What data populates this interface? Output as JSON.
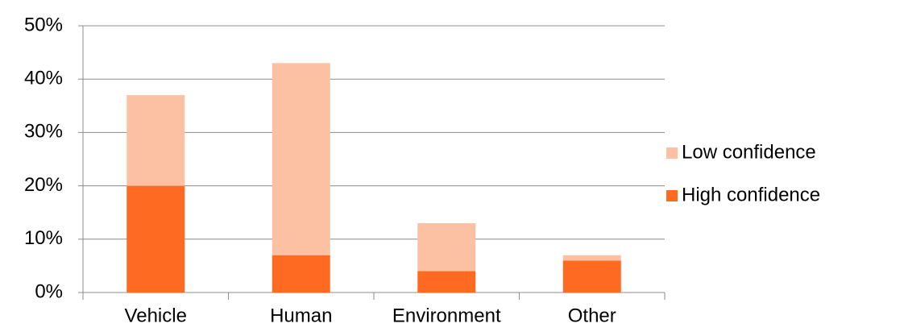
{
  "chart_data": {
    "type": "stacked_bar",
    "categories": [
      "Vehicle",
      "Human",
      "Environment",
      "Other"
    ],
    "series": [
      {
        "name": "High confidence",
        "color": "#ff6a22",
        "values": [
          20,
          7,
          4,
          6
        ]
      },
      {
        "name": "Low confidence",
        "color": "#fcc0a3",
        "values": [
          17,
          36,
          9,
          1
        ]
      }
    ],
    "ylim": [
      0,
      50
    ],
    "yticks": [
      {
        "value": 0,
        "label": "0%"
      },
      {
        "value": 10,
        "label": "10%"
      },
      {
        "value": 20,
        "label": "20%"
      },
      {
        "value": 30,
        "label": "30%"
      },
      {
        "value": 40,
        "label": "40%"
      },
      {
        "value": 50,
        "label": "50%"
      }
    ],
    "grid": true,
    "legend": "right"
  }
}
